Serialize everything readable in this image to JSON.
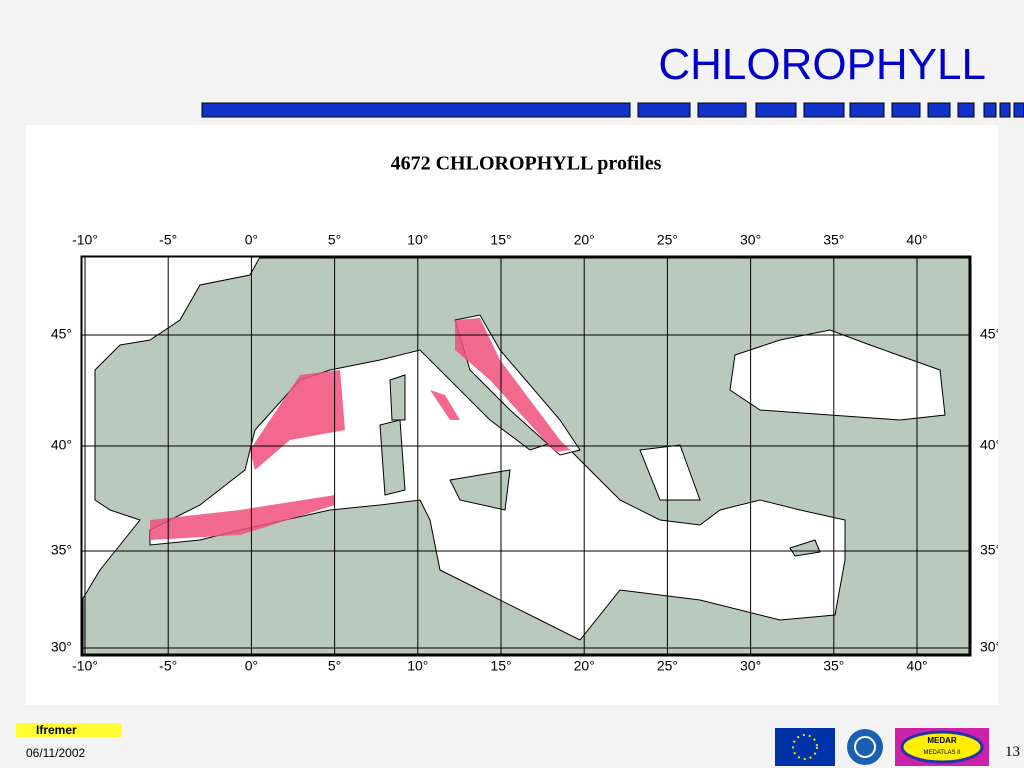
{
  "slide": {
    "title": "CHLOROPHYLL",
    "logo": "Ifremer",
    "date": "06/11/2002",
    "page": "13",
    "badge_title": "MEDAR",
    "badge_subtitle": "MEDATLAS II"
  },
  "map": {
    "title": "4672 CHLOROPHYLL profiles",
    "lon_ticks": [
      "-10°",
      "-5°",
      "0°",
      "5°",
      "10°",
      "15°",
      "20°",
      "25°",
      "30°",
      "35°",
      "40°"
    ],
    "lat_ticks": [
      "45°",
      "40°",
      "35°",
      "30°"
    ]
  }
}
